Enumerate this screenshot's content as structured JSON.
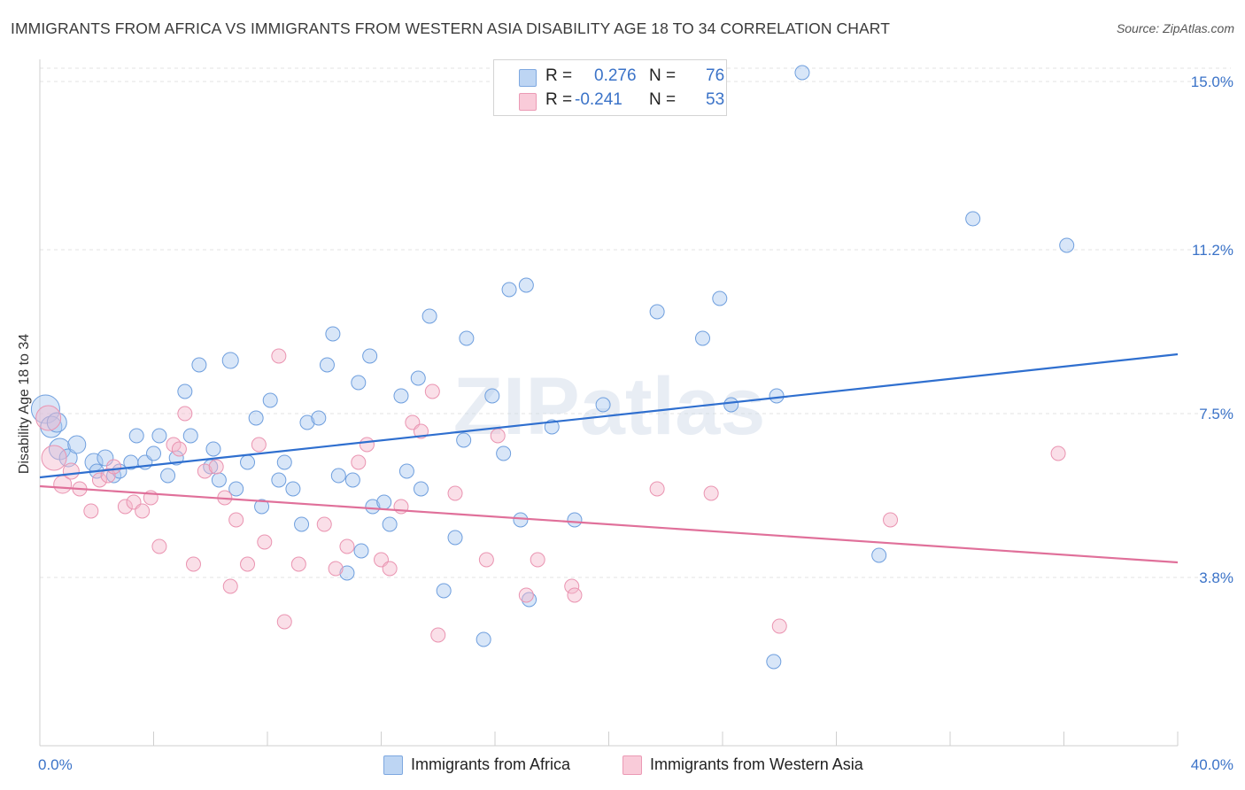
{
  "title": "IMMIGRANTS FROM AFRICA VS IMMIGRANTS FROM WESTERN ASIA DISABILITY AGE 18 TO 34 CORRELATION CHART",
  "source": "Source: ZipAtlas.com",
  "watermark": "ZIPatlas",
  "legend": {
    "series1": {
      "r_label": "R =",
      "r_value": "0.276",
      "n_label": "N =",
      "n_value": "76",
      "color": "#a9c8ef"
    },
    "series2": {
      "r_label": "R =",
      "r_value": "-0.241",
      "n_label": "N =",
      "n_value": "53",
      "color": "#f5b8cb"
    }
  },
  "colors": {
    "blue_fill": "#a9c8ef",
    "blue_line": "#2f6fcf",
    "pink_fill": "#f5b8cb",
    "pink_line": "#e0709a",
    "tick_text": "#3b73c8"
  },
  "chart_data": {
    "type": "scatter",
    "title": "IMMIGRANTS FROM AFRICA VS IMMIGRANTS FROM WESTERN ASIA DISABILITY AGE 18 TO 34 CORRELATION CHART",
    "xlabel": "",
    "ylabel": "Disability Age 18 to 34",
    "xlim": [
      0,
      40
    ],
    "ylim": [
      0,
      15.5
    ],
    "x_tick_labels": [
      "0.0%",
      "40.0%"
    ],
    "y_ticks": [
      3.8,
      7.5,
      11.2,
      15.0
    ],
    "y_tick_labels": [
      "3.8%",
      "7.5%",
      "11.2%",
      "15.0%"
    ],
    "grid": true,
    "legend_position": "bottom",
    "series": [
      {
        "name": "Immigrants from Africa",
        "color": "#a9c8ef",
        "trend": {
          "x0": 0,
          "y0": 6.06,
          "x1": 40,
          "y1": 8.84
        },
        "points": [
          [
            0.2,
            7.6,
            16
          ],
          [
            0.4,
            7.2,
            12
          ],
          [
            0.7,
            6.7,
            12
          ],
          [
            1.0,
            6.5,
            10
          ],
          [
            1.3,
            6.8,
            10
          ],
          [
            1.9,
            6.4,
            10
          ],
          [
            2.3,
            6.5,
            9
          ],
          [
            2.0,
            6.2,
            8
          ],
          [
            2.6,
            6.1,
            8
          ],
          [
            2.8,
            6.2,
            8
          ],
          [
            3.2,
            6.4,
            8
          ],
          [
            3.4,
            7.0,
            8
          ],
          [
            3.7,
            6.4,
            8
          ],
          [
            4.0,
            6.6,
            8
          ],
          [
            4.2,
            7.0,
            8
          ],
          [
            4.5,
            6.1,
            8
          ],
          [
            4.8,
            6.5,
            8
          ],
          [
            5.1,
            8.0,
            8
          ],
          [
            5.3,
            7.0,
            8
          ],
          [
            5.6,
            8.6,
            8
          ],
          [
            6.0,
            6.3,
            8
          ],
          [
            6.1,
            6.7,
            8
          ],
          [
            6.3,
            6.0,
            8
          ],
          [
            6.7,
            8.7,
            9
          ],
          [
            6.9,
            5.8,
            8
          ],
          [
            7.3,
            6.4,
            8
          ],
          [
            7.6,
            7.4,
            8
          ],
          [
            7.8,
            5.4,
            8
          ],
          [
            8.1,
            7.8,
            8
          ],
          [
            8.4,
            6.0,
            8
          ],
          [
            8.6,
            6.4,
            8
          ],
          [
            8.9,
            5.8,
            8
          ],
          [
            9.2,
            5.0,
            8
          ],
          [
            9.4,
            7.3,
            8
          ],
          [
            9.8,
            7.4,
            8
          ],
          [
            10.1,
            8.6,
            8
          ],
          [
            10.3,
            9.3,
            8
          ],
          [
            10.5,
            6.1,
            8
          ],
          [
            10.8,
            3.9,
            8
          ],
          [
            11.0,
            6.0,
            8
          ],
          [
            11.2,
            8.2,
            8
          ],
          [
            11.3,
            4.4,
            8
          ],
          [
            11.6,
            8.8,
            8
          ],
          [
            11.7,
            5.4,
            8
          ],
          [
            12.1,
            5.5,
            8
          ],
          [
            12.3,
            5.0,
            8
          ],
          [
            12.7,
            7.9,
            8
          ],
          [
            12.9,
            6.2,
            8
          ],
          [
            13.3,
            8.3,
            8
          ],
          [
            13.4,
            5.8,
            8
          ],
          [
            13.7,
            9.7,
            8
          ],
          [
            14.2,
            3.5,
            8
          ],
          [
            14.6,
            4.7,
            8
          ],
          [
            14.9,
            6.9,
            8
          ],
          [
            15.0,
            9.2,
            8
          ],
          [
            15.6,
            2.4,
            8
          ],
          [
            15.9,
            7.9,
            8
          ],
          [
            16.3,
            6.6,
            8
          ],
          [
            16.5,
            10.3,
            8
          ],
          [
            16.9,
            5.1,
            8
          ],
          [
            17.2,
            3.3,
            8
          ],
          [
            17.1,
            10.4,
            8
          ],
          [
            18.0,
            7.2,
            8
          ],
          [
            18.8,
            5.1,
            8
          ],
          [
            19.8,
            7.7,
            8
          ],
          [
            21.7,
            9.8,
            8
          ],
          [
            23.3,
            9.2,
            8
          ],
          [
            23.9,
            10.1,
            8
          ],
          [
            24.3,
            7.7,
            8
          ],
          [
            25.8,
            1.9,
            8
          ],
          [
            25.9,
            7.9,
            8
          ],
          [
            26.8,
            15.2,
            8
          ],
          [
            29.5,
            4.3,
            8
          ],
          [
            32.8,
            11.9,
            8
          ],
          [
            36.1,
            11.3,
            8
          ],
          [
            0.6,
            7.3,
            11
          ]
        ]
      },
      {
        "name": "Immigrants from Western Asia",
        "color": "#f5b8cb",
        "trend": {
          "x0": 0,
          "y0": 5.86,
          "x1": 40,
          "y1": 4.14
        },
        "points": [
          [
            0.3,
            7.4,
            14
          ],
          [
            0.5,
            6.5,
            14
          ],
          [
            0.8,
            5.9,
            10
          ],
          [
            1.1,
            6.2,
            9
          ],
          [
            1.4,
            5.8,
            8
          ],
          [
            1.8,
            5.3,
            8
          ],
          [
            2.1,
            6.0,
            8
          ],
          [
            2.4,
            6.1,
            8
          ],
          [
            2.6,
            6.3,
            8
          ],
          [
            3.0,
            5.4,
            8
          ],
          [
            3.3,
            5.5,
            8
          ],
          [
            3.6,
            5.3,
            8
          ],
          [
            3.9,
            5.6,
            8
          ],
          [
            4.2,
            4.5,
            8
          ],
          [
            4.7,
            6.8,
            8
          ],
          [
            4.9,
            6.7,
            8
          ],
          [
            5.1,
            7.5,
            8
          ],
          [
            5.4,
            4.1,
            8
          ],
          [
            5.8,
            6.2,
            8
          ],
          [
            6.2,
            6.3,
            8
          ],
          [
            6.5,
            5.6,
            8
          ],
          [
            6.7,
            3.6,
            8
          ],
          [
            6.9,
            5.1,
            8
          ],
          [
            7.3,
            4.1,
            8
          ],
          [
            7.7,
            6.8,
            8
          ],
          [
            7.9,
            4.6,
            8
          ],
          [
            8.4,
            8.8,
            8
          ],
          [
            8.6,
            2.8,
            8
          ],
          [
            9.1,
            4.1,
            8
          ],
          [
            10.0,
            5.0,
            8
          ],
          [
            10.4,
            4.0,
            8
          ],
          [
            10.8,
            4.5,
            8
          ],
          [
            11.2,
            6.4,
            8
          ],
          [
            11.5,
            6.8,
            8
          ],
          [
            12.0,
            4.2,
            8
          ],
          [
            12.3,
            4.0,
            8
          ],
          [
            12.7,
            5.4,
            8
          ],
          [
            13.1,
            7.3,
            8
          ],
          [
            13.4,
            7.1,
            8
          ],
          [
            13.8,
            8.0,
            8
          ],
          [
            14.0,
            2.5,
            8
          ],
          [
            14.6,
            5.7,
            8
          ],
          [
            15.7,
            4.2,
            8
          ],
          [
            16.1,
            7.0,
            8
          ],
          [
            17.1,
            3.4,
            8
          ],
          [
            17.5,
            4.2,
            8
          ],
          [
            18.7,
            3.6,
            8
          ],
          [
            18.8,
            3.4,
            8
          ],
          [
            21.7,
            5.8,
            8
          ],
          [
            23.6,
            5.7,
            8
          ],
          [
            26.0,
            2.7,
            8
          ],
          [
            29.9,
            5.1,
            8
          ],
          [
            35.8,
            6.6,
            8
          ]
        ]
      }
    ]
  },
  "bottom_legend": [
    "Immigrants from Africa",
    "Immigrants from Western Asia"
  ]
}
